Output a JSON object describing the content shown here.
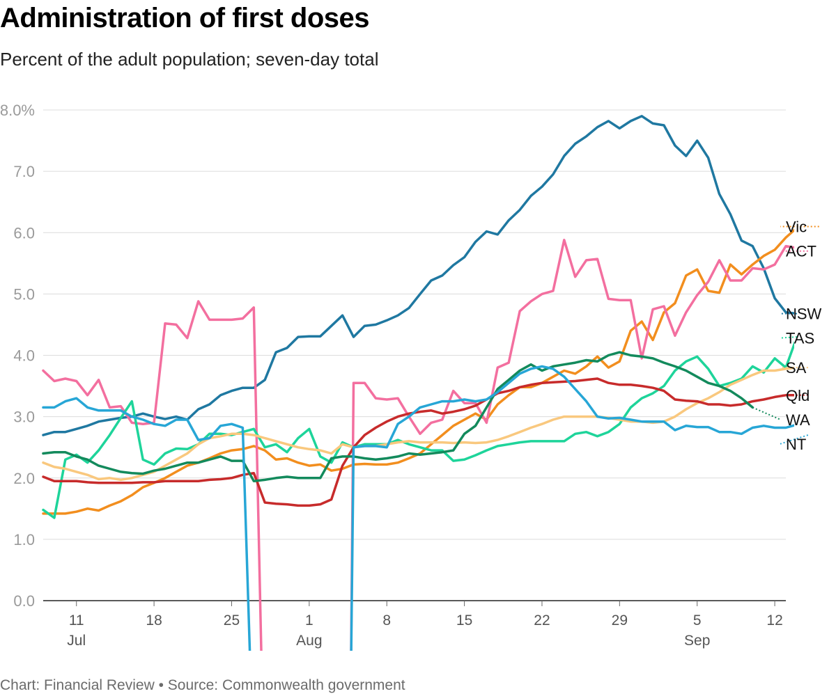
{
  "header": {
    "title": "Administration of first doses",
    "subtitle": "Percent of the adult population; seven-day total"
  },
  "footer": {
    "text": "Chart: Financial Review • Source: Commonwealth government"
  },
  "chart_data": {
    "type": "line",
    "ylim": [
      0,
      8
    ],
    "yticks": [
      "0.0",
      "1.0",
      "2.0",
      "3.0",
      "4.0",
      "5.0",
      "6.0",
      "7.0",
      "8.0%"
    ],
    "xrange": [
      "2021-07-08",
      "2021-09-13"
    ],
    "xticks": [
      {
        "date": "2021-07-11",
        "label": "11",
        "month": "Jul"
      },
      {
        "date": "2021-07-18",
        "label": "18",
        "month": ""
      },
      {
        "date": "2021-07-25",
        "label": "25",
        "month": ""
      },
      {
        "date": "2021-08-01",
        "label": "1",
        "month": "Aug"
      },
      {
        "date": "2021-08-08",
        "label": "8",
        "month": ""
      },
      {
        "date": "2021-08-15",
        "label": "15",
        "month": ""
      },
      {
        "date": "2021-08-22",
        "label": "22",
        "month": ""
      },
      {
        "date": "2021-08-29",
        "label": "29",
        "month": ""
      },
      {
        "date": "2021-09-05",
        "label": "5",
        "month": "Sep"
      },
      {
        "date": "2021-09-12",
        "label": "12",
        "month": ""
      }
    ],
    "grid": true,
    "legend": "direct labels at line ends (right)",
    "series": [
      {
        "name": "NSW",
        "color": "#1f78a1",
        "start": "2021-07-08",
        "values": [
          2.7,
          2.75,
          2.75,
          2.8,
          2.85,
          2.92,
          2.95,
          2.98,
          3.0,
          3.05,
          3.0,
          2.96,
          3.0,
          2.95,
          3.12,
          3.2,
          3.35,
          3.42,
          3.47,
          3.47,
          3.6,
          4.05,
          4.12,
          4.3,
          4.31,
          4.31,
          4.48,
          4.65,
          4.3,
          4.48,
          4.5,
          4.57,
          4.65,
          4.77,
          5.0,
          5.22,
          5.3,
          5.47,
          5.6,
          5.85,
          6.02,
          5.97,
          6.2,
          6.37,
          6.6,
          6.75,
          6.95,
          7.25,
          7.45,
          7.57,
          7.72,
          7.82,
          7.7,
          7.82,
          7.9,
          7.78,
          7.75,
          7.42,
          7.25,
          7.5,
          7.22,
          6.63,
          6.3,
          5.87,
          5.78,
          5.42,
          4.93,
          4.7,
          4.68
        ]
      },
      {
        "name": "Vic",
        "color": "#f28e1e",
        "start": "2021-07-08",
        "values": [
          1.42,
          1.42,
          1.42,
          1.45,
          1.5,
          1.47,
          1.55,
          1.62,
          1.72,
          1.85,
          1.92,
          2.0,
          2.1,
          2.2,
          2.25,
          2.32,
          2.4,
          2.45,
          2.47,
          2.52,
          2.45,
          2.3,
          2.32,
          2.25,
          2.2,
          2.22,
          2.12,
          2.15,
          2.22,
          2.23,
          2.22,
          2.22,
          2.25,
          2.32,
          2.4,
          2.55,
          2.7,
          2.85,
          2.95,
          3.05,
          2.95,
          3.2,
          3.35,
          3.48,
          3.48,
          3.55,
          3.65,
          3.75,
          3.7,
          3.82,
          3.98,
          3.8,
          3.9,
          4.4,
          4.55,
          4.25,
          4.7,
          4.85,
          5.3,
          5.4,
          5.05,
          5.02,
          5.48,
          5.32,
          5.48,
          5.62,
          5.72,
          5.92,
          6.08,
          6.05,
          6.1
        ]
      },
      {
        "name": "ACT",
        "color": "#f36f9f",
        "start": "2021-07-08",
        "values": [
          3.75,
          3.58,
          3.62,
          3.58,
          3.35,
          3.6,
          3.15,
          3.17,
          2.9,
          2.88,
          2.9,
          4.52,
          4.5,
          4.28,
          4.88,
          4.58,
          4.58,
          4.58,
          4.6,
          4.78,
          null,
          null,
          null,
          null,
          null,
          null,
          null,
          null,
          3.55,
          3.55,
          3.3,
          3.28,
          3.3,
          3.0,
          2.72,
          2.9,
          2.95,
          3.42,
          3.22,
          3.22,
          2.9,
          3.8,
          3.88,
          4.72,
          4.88,
          5.0,
          5.05,
          5.88,
          5.28,
          5.55,
          5.57,
          4.92,
          4.9,
          4.9,
          3.95,
          4.75,
          4.8,
          4.32,
          4.7,
          4.98,
          5.2,
          5.55,
          5.22,
          5.22,
          5.42,
          5.4,
          5.48,
          5.78,
          5.75,
          5.7
        ]
      },
      {
        "name": "TAS",
        "color": "#1ed49a",
        "start": "2021-07-08",
        "values": [
          1.48,
          1.35,
          2.3,
          2.38,
          2.25,
          2.45,
          2.7,
          2.98,
          3.25,
          2.3,
          2.22,
          2.4,
          2.48,
          2.47,
          2.55,
          2.72,
          2.72,
          2.7,
          2.75,
          2.8,
          2.5,
          2.55,
          2.42,
          2.65,
          2.8,
          2.35,
          2.25,
          2.58,
          2.5,
          2.55,
          2.55,
          2.55,
          2.62,
          2.55,
          2.5,
          2.45,
          2.45,
          2.28,
          2.3,
          2.37,
          2.45,
          2.52,
          2.55,
          2.58,
          2.6,
          2.6,
          2.6,
          2.6,
          2.72,
          2.75,
          2.68,
          2.75,
          2.88,
          3.15,
          3.3,
          3.38,
          3.5,
          3.75,
          3.9,
          3.98,
          3.78,
          3.5,
          3.55,
          3.62,
          3.82,
          3.72,
          3.95,
          3.8,
          4.3
        ]
      },
      {
        "name": "SA",
        "color": "#f9c87e",
        "start": "2021-07-08",
        "values": [
          2.25,
          2.18,
          2.15,
          2.1,
          2.05,
          1.98,
          2.0,
          1.97,
          2.0,
          2.05,
          2.1,
          2.2,
          2.3,
          2.4,
          2.55,
          2.65,
          2.68,
          2.72,
          2.72,
          2.7,
          2.65,
          2.6,
          2.55,
          2.5,
          2.47,
          2.45,
          2.4,
          2.55,
          2.5,
          2.52,
          2.52,
          2.55,
          2.58,
          2.6,
          2.58,
          2.58,
          2.58,
          2.57,
          2.58,
          2.57,
          2.58,
          2.62,
          2.68,
          2.75,
          2.82,
          2.88,
          2.95,
          3.0,
          3.0,
          3.0,
          3.0,
          2.98,
          2.95,
          2.92,
          2.92,
          2.9,
          2.92,
          3.0,
          3.12,
          3.22,
          3.3,
          3.4,
          3.52,
          3.6,
          3.68,
          3.75,
          3.75,
          3.78,
          3.8,
          3.8
        ]
      },
      {
        "name": "Qld",
        "color": "#c72b2b",
        "start": "2021-07-08",
        "values": [
          2.02,
          1.95,
          1.95,
          1.95,
          1.93,
          1.92,
          1.92,
          1.92,
          1.92,
          1.93,
          1.93,
          1.95,
          1.95,
          1.95,
          1.95,
          1.97,
          1.98,
          2.0,
          2.05,
          2.08,
          1.6,
          1.58,
          1.57,
          1.55,
          1.55,
          1.57,
          1.65,
          2.2,
          2.5,
          2.7,
          2.82,
          2.92,
          3.0,
          3.05,
          3.08,
          3.1,
          3.05,
          3.08,
          3.12,
          3.18,
          3.28,
          3.38,
          3.42,
          3.48,
          3.52,
          3.55,
          3.56,
          3.57,
          3.58,
          3.6,
          3.62,
          3.55,
          3.52,
          3.52,
          3.5,
          3.47,
          3.42,
          3.28,
          3.26,
          3.25,
          3.2,
          3.2,
          3.18,
          3.2,
          3.25,
          3.28,
          3.32,
          3.35,
          3.35,
          3.35
        ]
      },
      {
        "name": "WA",
        "color": "#138a5c",
        "start": "2021-07-08",
        "values": [
          2.4,
          2.42,
          2.42,
          2.35,
          2.3,
          2.2,
          2.15,
          2.1,
          2.08,
          2.07,
          2.12,
          2.15,
          2.2,
          2.25,
          2.25,
          2.3,
          2.35,
          2.28,
          2.28,
          1.95,
          1.97,
          2.0,
          2.02,
          2.0,
          2.0,
          2.0,
          2.32,
          2.35,
          2.35,
          2.32,
          2.3,
          2.32,
          2.35,
          2.4,
          2.38,
          2.4,
          2.42,
          2.45,
          2.72,
          2.85,
          3.15,
          3.45,
          3.6,
          3.75,
          3.85,
          3.75,
          3.82,
          3.85,
          3.88,
          3.92,
          3.9,
          4.0,
          4.05,
          4.0,
          3.98,
          3.95,
          3.88,
          3.82,
          3.75,
          3.65,
          3.55,
          3.5,
          3.42,
          3.3,
          3.15
        ]
      },
      {
        "name": "NT",
        "color": "#27a6d6",
        "start": "2021-07-08",
        "values": [
          3.15,
          3.15,
          3.25,
          3.3,
          3.15,
          3.1,
          3.1,
          3.1,
          3.0,
          2.95,
          2.88,
          2.85,
          2.95,
          2.95,
          2.62,
          2.65,
          2.85,
          2.88,
          2.82,
          null,
          null,
          null,
          null,
          null,
          null,
          null,
          null,
          null,
          2.5,
          2.52,
          2.52,
          2.5,
          2.88,
          3.0,
          3.15,
          3.2,
          3.25,
          3.25,
          3.28,
          3.25,
          3.28,
          3.4,
          3.55,
          3.7,
          3.78,
          3.82,
          3.78,
          3.65,
          3.45,
          3.25,
          3.0,
          2.97,
          2.98,
          2.95,
          2.92,
          2.92,
          2.92,
          2.78,
          2.85,
          2.83,
          2.83,
          2.75,
          2.75,
          2.72,
          2.82,
          2.85,
          2.82,
          2.82,
          2.87,
          2.7
        ]
      }
    ]
  }
}
